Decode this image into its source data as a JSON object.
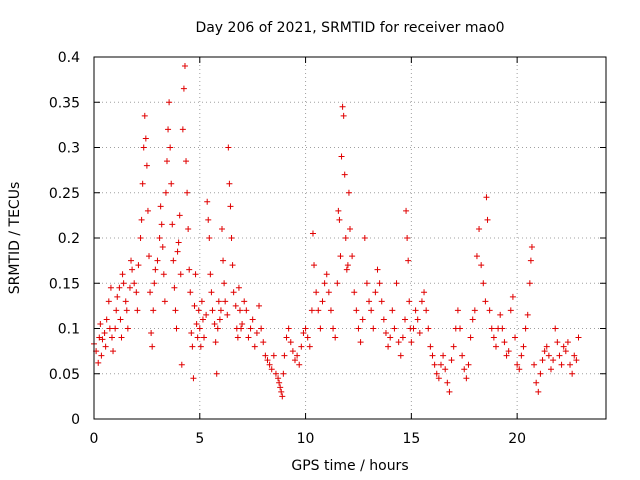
{
  "chart_data": {
    "type": "scatter",
    "title": "Day 206 of 2021, SRMTID for receiver mao0",
    "xlabel": "GPS time / hours",
    "ylabel": "SRMTID / TECUs",
    "xlim": [
      0,
      24.2
    ],
    "ylim": [
      0,
      0.4
    ],
    "x_ticks": [
      0,
      5,
      10,
      15,
      20
    ],
    "x_tick_labels": [
      "0",
      "5",
      "10",
      "15",
      "20"
    ],
    "y_ticks": [
      0,
      0.05,
      0.1,
      0.15,
      0.2,
      0.25,
      0.3,
      0.35,
      0.4
    ],
    "y_tick_labels": [
      "0",
      "0.05",
      "0.1",
      "0.15",
      "0.2",
      "0.25",
      "0.3",
      "0.35",
      "0.4"
    ],
    "grid": true,
    "marker": "+",
    "marker_color": "#e00000",
    "series": [
      {
        "name": "SRMTID",
        "points": [
          [
            0.0,
            0.083
          ],
          [
            0.1,
            0.075
          ],
          [
            0.2,
            0.062
          ],
          [
            0.25,
            0.09
          ],
          [
            0.3,
            0.105
          ],
          [
            0.35,
            0.07
          ],
          [
            0.4,
            0.088
          ],
          [
            0.5,
            0.095
          ],
          [
            0.55,
            0.08
          ],
          [
            0.6,
            0.11
          ],
          [
            0.7,
            0.13
          ],
          [
            0.75,
            0.1
          ],
          [
            0.8,
            0.145
          ],
          [
            0.85,
            0.09
          ],
          [
            0.9,
            0.075
          ],
          [
            1.0,
            0.1
          ],
          [
            1.05,
            0.12
          ],
          [
            1.1,
            0.135
          ],
          [
            1.2,
            0.145
          ],
          [
            1.25,
            0.11
          ],
          [
            1.3,
            0.09
          ],
          [
            1.35,
            0.16
          ],
          [
            1.4,
            0.15
          ],
          [
            1.5,
            0.13
          ],
          [
            1.55,
            0.12
          ],
          [
            1.6,
            0.1
          ],
          [
            1.7,
            0.145
          ],
          [
            1.75,
            0.175
          ],
          [
            1.8,
            0.165
          ],
          [
            1.9,
            0.15
          ],
          [
            2.0,
            0.14
          ],
          [
            2.05,
            0.12
          ],
          [
            2.1,
            0.17
          ],
          [
            2.2,
            0.2
          ],
          [
            2.25,
            0.22
          ],
          [
            2.3,
            0.26
          ],
          [
            2.35,
            0.3
          ],
          [
            2.4,
            0.335
          ],
          [
            2.45,
            0.31
          ],
          [
            2.5,
            0.28
          ],
          [
            2.55,
            0.23
          ],
          [
            2.6,
            0.18
          ],
          [
            2.65,
            0.14
          ],
          [
            2.7,
            0.095
          ],
          [
            2.75,
            0.08
          ],
          [
            2.8,
            0.12
          ],
          [
            2.85,
            0.15
          ],
          [
            2.9,
            0.165
          ],
          [
            3.0,
            0.175
          ],
          [
            3.1,
            0.2
          ],
          [
            3.15,
            0.235
          ],
          [
            3.2,
            0.215
          ],
          [
            3.25,
            0.19
          ],
          [
            3.3,
            0.16
          ],
          [
            3.35,
            0.13
          ],
          [
            3.4,
            0.25
          ],
          [
            3.45,
            0.285
          ],
          [
            3.5,
            0.32
          ],
          [
            3.55,
            0.35
          ],
          [
            3.6,
            0.3
          ],
          [
            3.65,
            0.26
          ],
          [
            3.7,
            0.215
          ],
          [
            3.75,
            0.175
          ],
          [
            3.8,
            0.145
          ],
          [
            3.85,
            0.12
          ],
          [
            3.9,
            0.1
          ],
          [
            3.95,
            0.185
          ],
          [
            4.0,
            0.195
          ],
          [
            4.05,
            0.225
          ],
          [
            4.1,
            0.16
          ],
          [
            4.15,
            0.06
          ],
          [
            4.2,
            0.32
          ],
          [
            4.25,
            0.365
          ],
          [
            4.3,
            0.39
          ],
          [
            4.35,
            0.285
          ],
          [
            4.4,
            0.25
          ],
          [
            4.45,
            0.21
          ],
          [
            4.5,
            0.165
          ],
          [
            4.55,
            0.14
          ],
          [
            4.6,
            0.095
          ],
          [
            4.65,
            0.08
          ],
          [
            4.7,
            0.045
          ],
          [
            4.75,
            0.125
          ],
          [
            4.8,
            0.16
          ],
          [
            4.85,
            0.105
          ],
          [
            4.9,
            0.09
          ],
          [
            4.95,
            0.12
          ],
          [
            5.0,
            0.1
          ],
          [
            5.05,
            0.08
          ],
          [
            5.1,
            0.13
          ],
          [
            5.15,
            0.11
          ],
          [
            5.2,
            0.09
          ],
          [
            5.3,
            0.115
          ],
          [
            5.35,
            0.24
          ],
          [
            5.4,
            0.22
          ],
          [
            5.45,
            0.2
          ],
          [
            5.5,
            0.16
          ],
          [
            5.55,
            0.14
          ],
          [
            5.6,
            0.12
          ],
          [
            5.7,
            0.105
          ],
          [
            5.75,
            0.085
          ],
          [
            5.8,
            0.05
          ],
          [
            5.85,
            0.1
          ],
          [
            5.9,
            0.13
          ],
          [
            5.95,
            0.11
          ],
          [
            6.0,
            0.12
          ],
          [
            6.05,
            0.21
          ],
          [
            6.1,
            0.175
          ],
          [
            6.15,
            0.15
          ],
          [
            6.2,
            0.13
          ],
          [
            6.3,
            0.115
          ],
          [
            6.35,
            0.3
          ],
          [
            6.4,
            0.26
          ],
          [
            6.45,
            0.235
          ],
          [
            6.5,
            0.2
          ],
          [
            6.55,
            0.17
          ],
          [
            6.6,
            0.14
          ],
          [
            6.7,
            0.125
          ],
          [
            6.75,
            0.1
          ],
          [
            6.8,
            0.09
          ],
          [
            6.85,
            0.145
          ],
          [
            6.9,
            0.12
          ],
          [
            6.95,
            0.1
          ],
          [
            7.0,
            0.105
          ],
          [
            7.1,
            0.13
          ],
          [
            7.2,
            0.12
          ],
          [
            7.3,
            0.09
          ],
          [
            7.4,
            0.1
          ],
          [
            7.5,
            0.11
          ],
          [
            7.6,
            0.08
          ],
          [
            7.7,
            0.095
          ],
          [
            7.8,
            0.125
          ],
          [
            7.9,
            0.1
          ],
          [
            8.0,
            0.085
          ],
          [
            8.1,
            0.07
          ],
          [
            8.2,
            0.065
          ],
          [
            8.3,
            0.06
          ],
          [
            8.4,
            0.055
          ],
          [
            8.5,
            0.07
          ],
          [
            8.6,
            0.05
          ],
          [
            8.7,
            0.045
          ],
          [
            8.75,
            0.04
          ],
          [
            8.8,
            0.035
          ],
          [
            8.85,
            0.03
          ],
          [
            8.9,
            0.025
          ],
          [
            8.95,
            0.05
          ],
          [
            9.0,
            0.07
          ],
          [
            9.1,
            0.09
          ],
          [
            9.2,
            0.1
          ],
          [
            9.3,
            0.085
          ],
          [
            9.4,
            0.075
          ],
          [
            9.5,
            0.065
          ],
          [
            9.6,
            0.07
          ],
          [
            9.7,
            0.06
          ],
          [
            9.8,
            0.08
          ],
          [
            9.9,
            0.095
          ],
          [
            10.0,
            0.1
          ],
          [
            10.1,
            0.09
          ],
          [
            10.2,
            0.08
          ],
          [
            10.3,
            0.12
          ],
          [
            10.35,
            0.205
          ],
          [
            10.4,
            0.17
          ],
          [
            10.5,
            0.14
          ],
          [
            10.6,
            0.12
          ],
          [
            10.7,
            0.1
          ],
          [
            10.8,
            0.13
          ],
          [
            10.9,
            0.15
          ],
          [
            11.0,
            0.16
          ],
          [
            11.1,
            0.14
          ],
          [
            11.2,
            0.12
          ],
          [
            11.3,
            0.1
          ],
          [
            11.4,
            0.09
          ],
          [
            11.5,
            0.15
          ],
          [
            11.55,
            0.23
          ],
          [
            11.6,
            0.22
          ],
          [
            11.65,
            0.18
          ],
          [
            11.7,
            0.29
          ],
          [
            11.75,
            0.345
          ],
          [
            11.8,
            0.335
          ],
          [
            11.85,
            0.27
          ],
          [
            11.9,
            0.2
          ],
          [
            11.95,
            0.165
          ],
          [
            12.0,
            0.17
          ],
          [
            12.05,
            0.25
          ],
          [
            12.1,
            0.21
          ],
          [
            12.2,
            0.18
          ],
          [
            12.3,
            0.14
          ],
          [
            12.4,
            0.12
          ],
          [
            12.5,
            0.1
          ],
          [
            12.6,
            0.085
          ],
          [
            12.7,
            0.11
          ],
          [
            12.8,
            0.2
          ],
          [
            12.9,
            0.15
          ],
          [
            13.0,
            0.13
          ],
          [
            13.1,
            0.12
          ],
          [
            13.2,
            0.1
          ],
          [
            13.3,
            0.14
          ],
          [
            13.4,
            0.165
          ],
          [
            13.5,
            0.15
          ],
          [
            13.6,
            0.13
          ],
          [
            13.7,
            0.11
          ],
          [
            13.8,
            0.095
          ],
          [
            13.9,
            0.08
          ],
          [
            14.0,
            0.09
          ],
          [
            14.1,
            0.12
          ],
          [
            14.2,
            0.1
          ],
          [
            14.3,
            0.15
          ],
          [
            14.4,
            0.085
          ],
          [
            14.5,
            0.07
          ],
          [
            14.6,
            0.09
          ],
          [
            14.7,
            0.11
          ],
          [
            14.75,
            0.23
          ],
          [
            14.8,
            0.2
          ],
          [
            14.85,
            0.175
          ],
          [
            14.9,
            0.13
          ],
          [
            14.95,
            0.1
          ],
          [
            15.0,
            0.085
          ],
          [
            15.1,
            0.1
          ],
          [
            15.2,
            0.12
          ],
          [
            15.3,
            0.11
          ],
          [
            15.4,
            0.095
          ],
          [
            15.5,
            0.13
          ],
          [
            15.6,
            0.14
          ],
          [
            15.7,
            0.12
          ],
          [
            15.8,
            0.1
          ],
          [
            15.9,
            0.08
          ],
          [
            16.0,
            0.07
          ],
          [
            16.1,
            0.06
          ],
          [
            16.2,
            0.05
          ],
          [
            16.3,
            0.045
          ],
          [
            16.4,
            0.06
          ],
          [
            16.5,
            0.07
          ],
          [
            16.6,
            0.055
          ],
          [
            16.7,
            0.04
          ],
          [
            16.8,
            0.03
          ],
          [
            16.9,
            0.065
          ],
          [
            17.0,
            0.08
          ],
          [
            17.1,
            0.1
          ],
          [
            17.2,
            0.12
          ],
          [
            17.3,
            0.1
          ],
          [
            17.4,
            0.07
          ],
          [
            17.5,
            0.055
          ],
          [
            17.6,
            0.045
          ],
          [
            17.7,
            0.06
          ],
          [
            17.8,
            0.09
          ],
          [
            17.9,
            0.11
          ],
          [
            18.0,
            0.12
          ],
          [
            18.1,
            0.18
          ],
          [
            18.2,
            0.21
          ],
          [
            18.3,
            0.17
          ],
          [
            18.4,
            0.15
          ],
          [
            18.5,
            0.13
          ],
          [
            18.55,
            0.245
          ],
          [
            18.6,
            0.22
          ],
          [
            18.7,
            0.12
          ],
          [
            18.8,
            0.1
          ],
          [
            18.9,
            0.09
          ],
          [
            19.0,
            0.08
          ],
          [
            19.1,
            0.1
          ],
          [
            19.2,
            0.115
          ],
          [
            19.3,
            0.1
          ],
          [
            19.4,
            0.085
          ],
          [
            19.5,
            0.07
          ],
          [
            19.6,
            0.075
          ],
          [
            19.7,
            0.12
          ],
          [
            19.8,
            0.135
          ],
          [
            19.9,
            0.09
          ],
          [
            20.0,
            0.06
          ],
          [
            20.1,
            0.055
          ],
          [
            20.2,
            0.07
          ],
          [
            20.3,
            0.08
          ],
          [
            20.4,
            0.1
          ],
          [
            20.5,
            0.115
          ],
          [
            20.6,
            0.15
          ],
          [
            20.65,
            0.175
          ],
          [
            20.7,
            0.19
          ],
          [
            20.8,
            0.06
          ],
          [
            20.9,
            0.04
          ],
          [
            21.0,
            0.03
          ],
          [
            21.1,
            0.05
          ],
          [
            21.2,
            0.065
          ],
          [
            21.3,
            0.075
          ],
          [
            21.4,
            0.08
          ],
          [
            21.5,
            0.07
          ],
          [
            21.6,
            0.055
          ],
          [
            21.7,
            0.065
          ],
          [
            21.8,
            0.1
          ],
          [
            21.9,
            0.085
          ],
          [
            22.0,
            0.07
          ],
          [
            22.1,
            0.06
          ],
          [
            22.2,
            0.08
          ],
          [
            22.3,
            0.075
          ],
          [
            22.4,
            0.085
          ],
          [
            22.5,
            0.06
          ],
          [
            22.6,
            0.05
          ],
          [
            22.7,
            0.07
          ],
          [
            22.8,
            0.065
          ],
          [
            22.9,
            0.09
          ]
        ]
      }
    ]
  }
}
